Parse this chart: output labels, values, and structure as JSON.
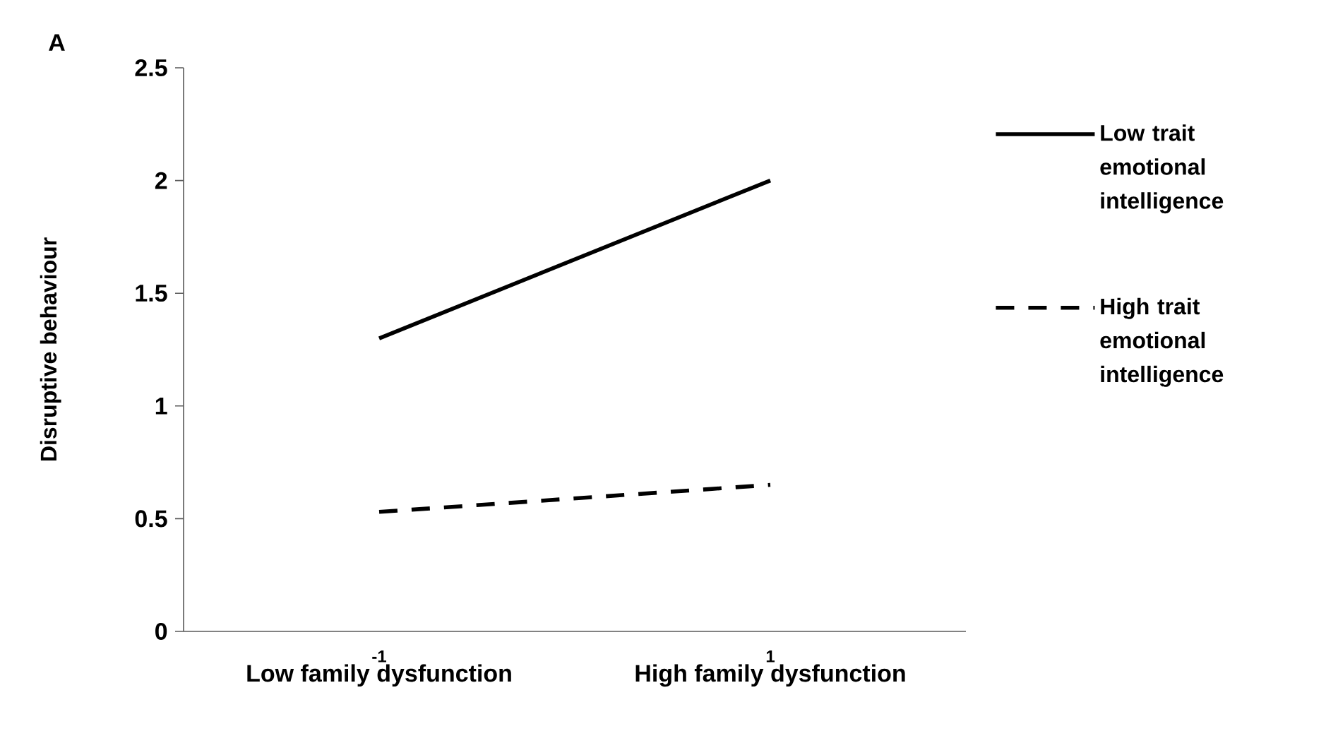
{
  "chart_data": {
    "type": "line",
    "title": "A",
    "ylabel": "Disruptive behaviour",
    "categories": [
      "Low family dysfunction",
      "High family dysfunction"
    ],
    "series": [
      {
        "name": "Low trait emotional intelligence",
        "color": "#000000",
        "line_style": "solid",
        "values": [
          1.3,
          2.0
        ]
      },
      {
        "name": "High trait emotional intelligence",
        "color": "#000000",
        "line_style": "dashed",
        "values": [
          0.53,
          0.65
        ]
      }
    ],
    "annotations": [
      "-1",
      "1"
    ],
    "ylim": [
      0,
      2.5
    ],
    "yticks": [
      0,
      0.5,
      1,
      1.5,
      2,
      2.5
    ],
    "legend": "right",
    "marker": "none"
  }
}
